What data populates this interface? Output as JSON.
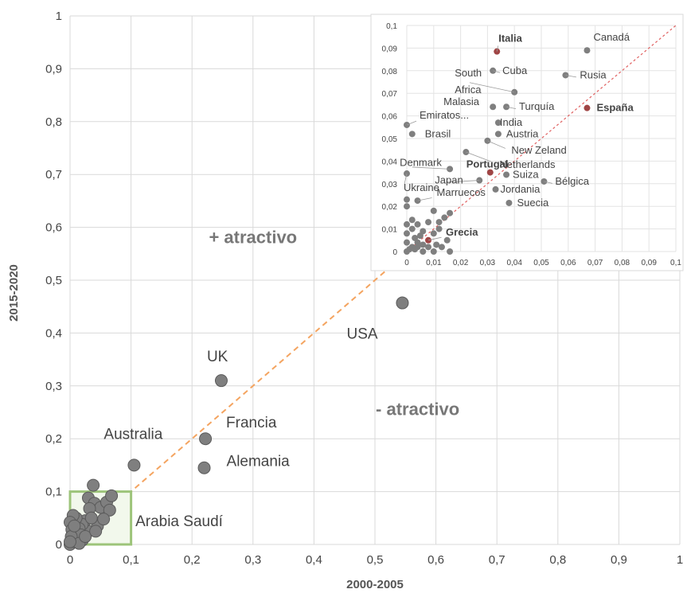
{
  "chart_data": [
    {
      "type": "scatter",
      "title": "",
      "xlabel": "2000-2005",
      "ylabel": "2015-2020",
      "xlim": [
        0,
        1
      ],
      "ylim": [
        0,
        1
      ],
      "grid": true,
      "x_ticks": [
        "0",
        "0,1",
        "0,2",
        "0,3",
        "0,4",
        "0,5",
        "0,6",
        "0,7",
        "0,8",
        "0,9",
        "1"
      ],
      "y_ticks": [
        "0",
        "0,1",
        "0,2",
        "0,3",
        "0,4",
        "0,5",
        "0,6",
        "0,7",
        "0,8",
        "0,9",
        "1"
      ],
      "diagonal_reference": true,
      "highlight_box": {
        "x": [
          0,
          0.1
        ],
        "y": [
          0,
          0.1
        ],
        "color": "#9dc47a"
      },
      "region_labels": [
        {
          "text": "+ atractivo",
          "x": 0.3,
          "y": 0.57
        },
        {
          "text": "- atractivo",
          "x": 0.57,
          "y": 0.245
        }
      ],
      "labeled_points": [
        {
          "name": "USA",
          "x": 0.545,
          "y": 0.457
        },
        {
          "name": "UK",
          "x": 0.248,
          "y": 0.31
        },
        {
          "name": "Francia",
          "x": 0.222,
          "y": 0.2
        },
        {
          "name": "Alemania",
          "x": 0.22,
          "y": 0.145
        },
        {
          "name": "Australia",
          "x": 0.105,
          "y": 0.15
        },
        {
          "name": "Arabia Saudí",
          "x": 0.068,
          "y": 0.092
        }
      ],
      "points": [
        [
          0.038,
          0.112
        ],
        [
          0.03,
          0.088
        ],
        [
          0.04,
          0.078
        ],
        [
          0.05,
          0.07
        ],
        [
          0.032,
          0.068
        ],
        [
          0.06,
          0.08
        ],
        [
          0.065,
          0.065
        ],
        [
          0.045,
          0.035
        ],
        [
          0.03,
          0.025
        ],
        [
          0.025,
          0.045
        ],
        [
          0.02,
          0.038
        ],
        [
          0.015,
          0.03
        ],
        [
          0.01,
          0.05
        ],
        [
          0.005,
          0.055
        ],
        [
          0.0,
          0.042
        ],
        [
          0.01,
          0.02
        ],
        [
          0.005,
          0.01
        ],
        [
          0.0,
          0.0
        ],
        [
          0.008,
          0.005
        ],
        [
          0.012,
          0.012
        ],
        [
          0.02,
          0.008
        ],
        [
          0.003,
          0.028
        ],
        [
          0.018,
          0.018
        ],
        [
          0.002,
          0.015
        ],
        [
          0.035,
          0.05
        ],
        [
          0.015,
          0.002
        ],
        [
          0.0,
          0.005
        ],
        [
          0.025,
          0.015
        ],
        [
          0.042,
          0.025
        ],
        [
          0.055,
          0.048
        ],
        [
          0.007,
          0.035
        ]
      ],
      "point_color": "#7f7f7f",
      "reference_color": "#f4a460"
    },
    {
      "type": "scatter",
      "title": "",
      "xlim": [
        0,
        0.1
      ],
      "ylim": [
        0,
        0.1
      ],
      "grid": true,
      "x_ticks": [
        "0",
        "0,01",
        "0,02",
        "0,03",
        "0,04",
        "0,05",
        "0,06",
        "0,07",
        "0,08",
        "0,09",
        "0,1"
      ],
      "y_ticks": [
        "0",
        "0,01",
        "0,02",
        "0,03",
        "0,04",
        "0,05",
        "0,06",
        "0,07",
        "0,08",
        "0,09",
        "0,1"
      ],
      "diagonal_reference": true,
      "labeled_points": [
        {
          "name": "Italia",
          "x": 0.0335,
          "y": 0.0885,
          "highlight": true
        },
        {
          "name": "Canadá",
          "x": 0.067,
          "y": 0.089,
          "highlight": false
        },
        {
          "name": "Cuba",
          "x": 0.032,
          "y": 0.08,
          "highlight": false
        },
        {
          "name": "Rusia",
          "x": 0.059,
          "y": 0.078,
          "highlight": false
        },
        {
          "name": "South Africa",
          "x": 0.04,
          "y": 0.0705,
          "highlight": false
        },
        {
          "name": "Malasia",
          "x": 0.032,
          "y": 0.064,
          "highlight": false
        },
        {
          "name": "Turquía",
          "x": 0.037,
          "y": 0.064,
          "highlight": false
        },
        {
          "name": "España",
          "x": 0.067,
          "y": 0.0635,
          "highlight": true
        },
        {
          "name": "Emiratos...",
          "x": 0.0,
          "y": 0.056,
          "highlight": false
        },
        {
          "name": "India",
          "x": 0.034,
          "y": 0.057,
          "highlight": false
        },
        {
          "name": "Brasil",
          "x": 0.002,
          "y": 0.052,
          "highlight": false
        },
        {
          "name": "Austria",
          "x": 0.034,
          "y": 0.052,
          "highlight": false
        },
        {
          "name": "New Zeland",
          "x": 0.03,
          "y": 0.049,
          "highlight": false
        },
        {
          "name": "Netherlands",
          "x": 0.022,
          "y": 0.044,
          "highlight": false
        },
        {
          "name": "Denmark",
          "x": 0.016,
          "y": 0.0365,
          "highlight": false
        },
        {
          "name": "Portugal",
          "x": 0.031,
          "y": 0.035,
          "highlight": true
        },
        {
          "name": "Suiza",
          "x": 0.037,
          "y": 0.034,
          "highlight": false
        },
        {
          "name": "Japan",
          "x": 0.027,
          "y": 0.0315,
          "highlight": false
        },
        {
          "name": "Bélgica",
          "x": 0.051,
          "y": 0.031,
          "highlight": false
        },
        {
          "name": "Ukraine",
          "x": 0.0,
          "y": 0.0345,
          "highlight": false
        },
        {
          "name": "Jordania",
          "x": 0.033,
          "y": 0.0275,
          "highlight": false
        },
        {
          "name": "Marruecos",
          "x": 0.004,
          "y": 0.0225,
          "highlight": false
        },
        {
          "name": "Suecia",
          "x": 0.038,
          "y": 0.0215,
          "highlight": false
        },
        {
          "name": "Grecia",
          "x": 0.008,
          "y": 0.005,
          "highlight": true
        }
      ],
      "points": [
        [
          0.0,
          0.0
        ],
        [
          0.002,
          0.002
        ],
        [
          0.004,
          0.004
        ],
        [
          0.006,
          0.003
        ],
        [
          0.005,
          0.007
        ],
        [
          0.003,
          0.006
        ],
        [
          0.008,
          0.002
        ],
        [
          0.01,
          0.008
        ],
        [
          0.012,
          0.01
        ],
        [
          0.0,
          0.012
        ],
        [
          0.002,
          0.01
        ],
        [
          0.0,
          0.008
        ],
        [
          0.004,
          0.012
        ],
        [
          0.0,
          0.02
        ],
        [
          0.0,
          0.023
        ],
        [
          0.01,
          0.018
        ],
        [
          0.012,
          0.013
        ],
        [
          0.014,
          0.015
        ],
        [
          0.016,
          0.017
        ],
        [
          0.013,
          0.002
        ],
        [
          0.015,
          0.005
        ],
        [
          0.006,
          0.0
        ],
        [
          0.01,
          0.0
        ],
        [
          0.016,
          0.0
        ],
        [
          0.002,
          0.014
        ],
        [
          0.008,
          0.013
        ],
        [
          0.004,
          0.002
        ],
        [
          0.0,
          0.004
        ],
        [
          0.001,
          0.001
        ],
        [
          0.003,
          0.001
        ],
        [
          0.011,
          0.003
        ],
        [
          0.006,
          0.009
        ]
      ],
      "point_color": "#7f7f7f",
      "highlight_color": "#a04545",
      "reference_color": "#e06060"
    }
  ]
}
